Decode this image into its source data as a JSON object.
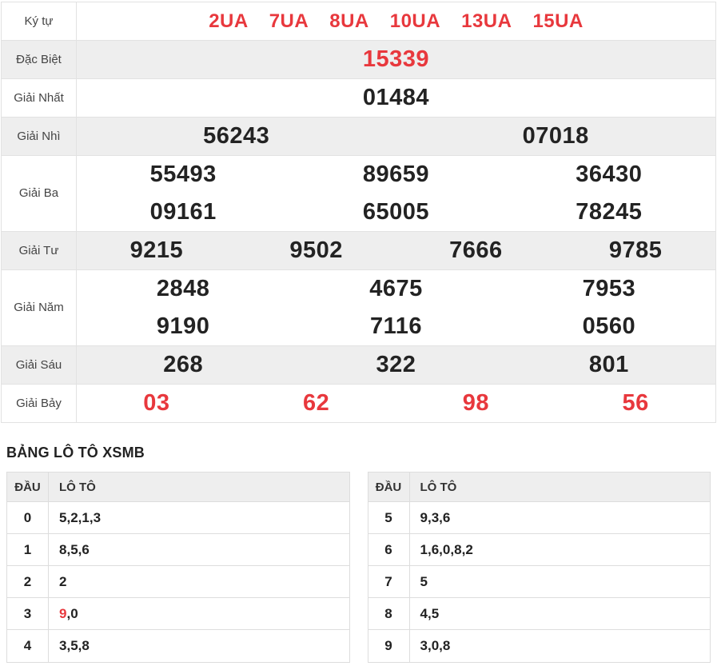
{
  "colors": {
    "accent_red": "#e8383d",
    "row_gray": "#eeeeee",
    "border": "#e2e2e2",
    "number_dark": "#232323"
  },
  "results": {
    "rows": [
      {
        "label": "Ký tự",
        "shaded": false,
        "red": true,
        "layout": "inline",
        "lines": [
          [
            "2UA",
            "7UA",
            "8UA",
            "10UA",
            "13UA",
            "15UA"
          ]
        ]
      },
      {
        "label": "Đặc Biệt",
        "shaded": true,
        "red": true,
        "layout": "grid",
        "lines": [
          [
            "15339"
          ]
        ]
      },
      {
        "label": "Giải Nhất",
        "shaded": false,
        "red": false,
        "layout": "grid",
        "lines": [
          [
            "01484"
          ]
        ]
      },
      {
        "label": "Giải Nhì",
        "shaded": true,
        "red": false,
        "layout": "grid",
        "lines": [
          [
            "56243",
            "07018"
          ]
        ]
      },
      {
        "label": "Giải Ba",
        "shaded": false,
        "red": false,
        "layout": "grid",
        "lines": [
          [
            "55493",
            "89659",
            "36430"
          ],
          [
            "09161",
            "65005",
            "78245"
          ]
        ]
      },
      {
        "label": "Giải Tư",
        "shaded": true,
        "red": false,
        "layout": "grid",
        "lines": [
          [
            "9215",
            "9502",
            "7666",
            "9785"
          ]
        ]
      },
      {
        "label": "Giải Năm",
        "shaded": false,
        "red": false,
        "layout": "grid",
        "lines": [
          [
            "2848",
            "4675",
            "7953"
          ],
          [
            "9190",
            "7116",
            "0560"
          ]
        ]
      },
      {
        "label": "Giải Sáu",
        "shaded": true,
        "red": false,
        "layout": "grid",
        "lines": [
          [
            "268",
            "322",
            "801"
          ]
        ]
      },
      {
        "label": "Giải Bảy",
        "shaded": false,
        "red": true,
        "layout": "grid",
        "lines": [
          [
            "03",
            "62",
            "98",
            "56"
          ]
        ]
      }
    ]
  },
  "loto": {
    "heading": "BẢNG LÔ TÔ XSMB",
    "col_dau": "ĐẦU",
    "col_loto": "LÔ TÔ",
    "left_rows": [
      {
        "dau": "0",
        "parts": [
          {
            "text": "5",
            "red": false
          },
          {
            "text": "2",
            "red": false
          },
          {
            "text": "1",
            "red": false
          },
          {
            "text": "3",
            "red": false
          }
        ]
      },
      {
        "dau": "1",
        "parts": [
          {
            "text": "8",
            "red": false
          },
          {
            "text": "5",
            "red": false
          },
          {
            "text": "6",
            "red": false
          }
        ]
      },
      {
        "dau": "2",
        "parts": [
          {
            "text": "2",
            "red": false
          }
        ]
      },
      {
        "dau": "3",
        "parts": [
          {
            "text": "9",
            "red": true
          },
          {
            "text": "0",
            "red": false
          }
        ]
      },
      {
        "dau": "4",
        "parts": [
          {
            "text": "3",
            "red": false
          },
          {
            "text": "5",
            "red": false
          },
          {
            "text": "8",
            "red": false
          }
        ]
      }
    ],
    "right_rows": [
      {
        "dau": "5",
        "parts": [
          {
            "text": "9",
            "red": false
          },
          {
            "text": "3",
            "red": false
          },
          {
            "text": "6",
            "red": false
          }
        ]
      },
      {
        "dau": "6",
        "parts": [
          {
            "text": "1",
            "red": false
          },
          {
            "text": "6",
            "red": false
          },
          {
            "text": "0",
            "red": false
          },
          {
            "text": "8",
            "red": false
          },
          {
            "text": "2",
            "red": false
          }
        ]
      },
      {
        "dau": "7",
        "parts": [
          {
            "text": "5",
            "red": false
          }
        ]
      },
      {
        "dau": "8",
        "parts": [
          {
            "text": "4",
            "red": false
          },
          {
            "text": "5",
            "red": false
          }
        ]
      },
      {
        "dau": "9",
        "parts": [
          {
            "text": "3",
            "red": false
          },
          {
            "text": "0",
            "red": false
          },
          {
            "text": "8",
            "red": false
          }
        ]
      }
    ]
  }
}
